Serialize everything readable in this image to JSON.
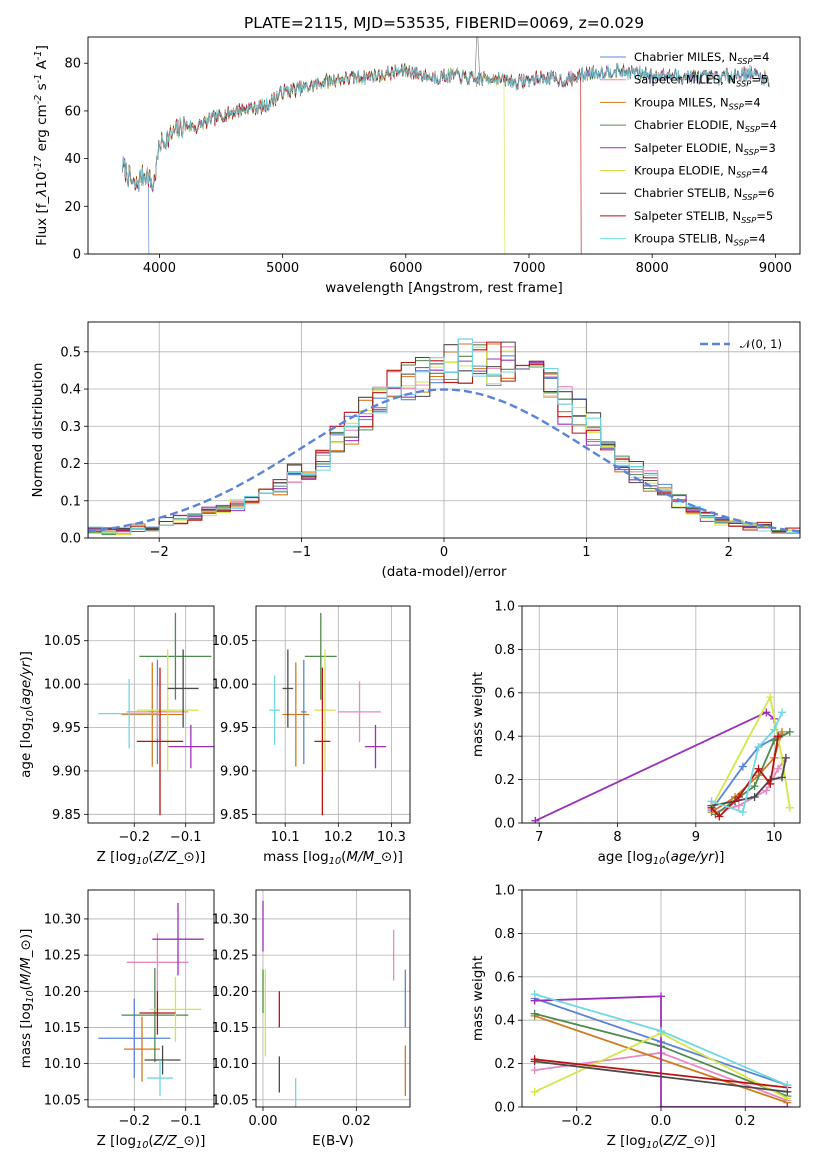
{
  "figure": {
    "title": "PLATE=2115, MJD=53535, FIBERID=0069, z=0.029",
    "colors": {
      "Chabrier MILES": "#5b84d8",
      "Salpeter MILES": "#e889c0",
      "Kroupa MILES": "#d07a22",
      "Chabrier ELODIE": "#4f8a4f",
      "Salpeter ELODIE": "#9b30b8",
      "Kroupa ELODIE": "#d4e64a",
      "Chabrier STELIB": "#4a4a4a",
      "Salpeter STELIB": "#b81414",
      "Kroupa STELIB": "#6fd8e0",
      "gaussian": "#5b84d8"
    }
  },
  "chart_data": [
    {
      "id": "spectrum",
      "type": "line",
      "xlabel": "wavelength [Angstrom, rest frame]",
      "ylabel": "Flux [f$_\\lambda$10$^{-17}$ erg cm$^{-2}$ s$^{-1}$ A$^{-1}$]",
      "xlim": [
        3420,
        9200
      ],
      "ylim": [
        0,
        91
      ],
      "xticks": [
        4000,
        5000,
        6000,
        7000,
        8000,
        9000
      ],
      "yticks": [
        0,
        20,
        40,
        60,
        80
      ],
      "grid": false,
      "legend": "top-right",
      "legend_entries": [
        {
          "name": "Chabrier MILES",
          "label": "Chabrier MILES, N",
          "sub": "SSP",
          "suffix": "=4"
        },
        {
          "name": "Salpeter MILES",
          "label": "Salpeter MILES, N",
          "sub": "SSP",
          "suffix": "=5"
        },
        {
          "name": "Kroupa MILES",
          "label": "Kroupa MILES, N",
          "sub": "SSP",
          "suffix": "=4"
        },
        {
          "name": "Chabrier ELODIE",
          "label": "Chabrier ELODIE, N",
          "sub": "SSP",
          "suffix": "=4"
        },
        {
          "name": "Salpeter ELODIE",
          "label": "Salpeter ELODIE, N",
          "sub": "SSP",
          "suffix": "=3"
        },
        {
          "name": "Kroupa ELODIE",
          "label": "Kroupa ELODIE, N",
          "sub": "SSP",
          "suffix": "=4"
        },
        {
          "name": "Chabrier STELIB",
          "label": "Chabrier STELIB, N",
          "sub": "SSP",
          "suffix": "=6"
        },
        {
          "name": "Salpeter STELIB",
          "label": "Salpeter STELIB, N",
          "sub": "SSP",
          "suffix": "=5"
        },
        {
          "name": "Kroupa STELIB",
          "label": "Kroupa STELIB, N",
          "sub": "SSP",
          "suffix": "=4"
        }
      ],
      "continuum": {
        "x": [
          3700,
          3800,
          3850,
          3900,
          3950,
          4000,
          4100,
          4200,
          4300,
          4400,
          4500,
          4700,
          4860,
          5000,
          5200,
          5400,
          5600,
          5800,
          6000,
          6200,
          6400,
          6563,
          6700,
          6900,
          7100,
          7300,
          7500,
          7700,
          8000,
          8500,
          8800,
          8950
        ],
        "y": [
          37,
          28,
          32,
          34,
          28,
          46,
          50,
          54,
          53,
          56,
          58,
          61,
          62,
          68,
          70,
          73,
          74,
          75,
          77,
          74,
          75,
          73,
          74,
          72,
          74,
          73,
          76,
          77,
          75,
          74,
          76,
          73
        ]
      },
      "dropouts": [
        {
          "name": "Chabrier MILES",
          "x": 3910
        },
        {
          "name": "Kroupa ELODIE",
          "x": 6800
        },
        {
          "name": "Salpeter STELIB",
          "x": 7420
        }
      ]
    },
    {
      "id": "residual-hist",
      "type": "line",
      "xlabel": "(data-model)/error",
      "ylabel": "Normed distribution",
      "xlim": [
        -2.5,
        2.5
      ],
      "ylim": [
        0,
        0.58
      ],
      "xticks": [
        -2,
        -1,
        0,
        1,
        2
      ],
      "yticks": [
        0.0,
        0.1,
        0.2,
        0.3,
        0.4,
        0.5
      ],
      "ytick_labels": [
        "0.0",
        "0.1",
        "0.2",
        "0.3",
        "0.4",
        "0.5"
      ],
      "grid": true,
      "legend": "top-right",
      "legend_entry": "𝒩(0, 1)",
      "bin_width": 0.1,
      "bin_start": -2.5,
      "base_hist": [
        0.02,
        0.02,
        0.02,
        0.03,
        0.03,
        0.04,
        0.05,
        0.06,
        0.07,
        0.08,
        0.09,
        0.1,
        0.12,
        0.14,
        0.17,
        0.19,
        0.22,
        0.26,
        0.3,
        0.34,
        0.37,
        0.4,
        0.42,
        0.44,
        0.45,
        0.46,
        0.47,
        0.48,
        0.47,
        0.46,
        0.44,
        0.42,
        0.4,
        0.36,
        0.33,
        0.29,
        0.25,
        0.21,
        0.18,
        0.15,
        0.12,
        0.1,
        0.08,
        0.06,
        0.05,
        0.04,
        0.03,
        0.03,
        0.02,
        0.02
      ]
    },
    {
      "id": "age-vs-Z",
      "type": "scatter",
      "xlabel": "Z [log$_{10}$($Z/Z_\\odot$)]",
      "ylabel": "age  [log$_{10}$($age/yr$)]",
      "xlim": [
        -0.29,
        -0.045
      ],
      "ylim": [
        9.84,
        10.09
      ],
      "xticks": [
        -0.2,
        -0.1
      ],
      "yticks": [
        9.85,
        9.9,
        9.95,
        10.0,
        10.05
      ],
      "ytick_labels": [
        "9.85",
        "9.90",
        "9.95",
        "10.00",
        "10.05"
      ],
      "grid": true,
      "points": [
        {
          "name": "Chabrier MILES",
          "x": -0.155,
          "y": 9.968,
          "xerr": 0.02,
          "yerr": 0.06
        },
        {
          "name": "Salpeter MILES",
          "x": -0.155,
          "y": 9.968,
          "xerr": 0.06,
          "yerr": 0.03
        },
        {
          "name": "Kroupa MILES",
          "x": -0.165,
          "y": 9.965,
          "xerr": 0.06,
          "yerr": 0.06
        },
        {
          "name": "Chabrier ELODIE",
          "x": -0.12,
          "y": 10.032,
          "xerr": 0.07,
          "yerr": 0.05
        },
        {
          "name": "Salpeter ELODIE",
          "x": -0.09,
          "y": 9.928,
          "xerr": 0.045,
          "yerr": 0.025
        },
        {
          "name": "Kroupa ELODIE",
          "x": -0.135,
          "y": 9.97,
          "xerr": 0.06,
          "yerr": 0.07
        },
        {
          "name": "Chabrier STELIB",
          "x": -0.105,
          "y": 9.995,
          "xerr": 0.03,
          "yerr": 0.045
        },
        {
          "name": "Salpeter STELIB",
          "x": -0.15,
          "y": 9.934,
          "xerr": 0.045,
          "yerr": 0.085
        },
        {
          "name": "Kroupa STELIB",
          "x": -0.21,
          "y": 9.966,
          "xerr": 0.06,
          "yerr": 0.04
        }
      ]
    },
    {
      "id": "age-vs-mass",
      "type": "scatter",
      "xlabel": "mass [log$_{10}$($M/M_\\odot$)]",
      "ylabel": "",
      "xlim": [
        10.045,
        10.335
      ],
      "ylim": [
        9.84,
        10.09
      ],
      "xticks": [
        10.1,
        10.2,
        10.3
      ],
      "xtick_labels": [
        "10.1",
        "10.2",
        "10.3"
      ],
      "yticks": [
        9.85,
        9.9,
        9.95,
        10.0,
        10.05
      ],
      "ytick_labels": [
        "9.85",
        "9.90",
        "9.95",
        "10.00",
        "10.05"
      ],
      "grid": true,
      "points": [
        {
          "name": "Chabrier MILES",
          "x": 10.135,
          "y": 9.968,
          "xerr": 0.005,
          "yerr": 0.06
        },
        {
          "name": "Salpeter MILES",
          "x": 10.24,
          "y": 9.968,
          "xerr": 0.04,
          "yerr": 0.035
        },
        {
          "name": "Kroupa MILES",
          "x": 10.12,
          "y": 9.965,
          "xerr": 0.025,
          "yerr": 0.06
        },
        {
          "name": "Chabrier ELODIE",
          "x": 10.167,
          "y": 10.032,
          "xerr": 0.03,
          "yerr": 0.05
        },
        {
          "name": "Salpeter ELODIE",
          "x": 10.27,
          "y": 9.928,
          "xerr": 0.02,
          "yerr": 0.025
        },
        {
          "name": "Kroupa ELODIE",
          "x": 10.175,
          "y": 9.97,
          "xerr": 0.02,
          "yerr": 0.07
        },
        {
          "name": "Chabrier STELIB",
          "x": 10.105,
          "y": 9.995,
          "xerr": 0.01,
          "yerr": 0.045
        },
        {
          "name": "Salpeter STELIB",
          "x": 10.17,
          "y": 9.934,
          "xerr": 0.015,
          "yerr": 0.085
        },
        {
          "name": "Kroupa STELIB",
          "x": 10.08,
          "y": 9.97,
          "xerr": 0.01,
          "yerr": 0.04
        }
      ]
    },
    {
      "id": "weight-vs-age",
      "type": "line",
      "xlabel": "age  [log$_{10}$($age/yr$)]",
      "ylabel": "mass weight",
      "xlim": [
        6.78,
        10.33
      ],
      "ylim": [
        0,
        1
      ],
      "xticks": [
        7,
        8,
        9,
        10
      ],
      "yticks": [
        0.0,
        0.2,
        0.4,
        0.6,
        0.8,
        1.0
      ],
      "ytick_labels": [
        "0.0",
        "0.2",
        "0.4",
        "0.6",
        "0.8",
        "1.0"
      ],
      "grid": true,
      "series": [
        {
          "name": "Chabrier MILES",
          "x": [
            9.2,
            9.6,
            9.8,
            10.1
          ],
          "y": [
            0.06,
            0.26,
            0.35,
            0.41
          ]
        },
        {
          "name": "Salpeter MILES",
          "x": [
            9.25,
            9.55,
            9.9,
            10.05,
            10.15
          ],
          "y": [
            0.05,
            0.08,
            0.15,
            0.25,
            0.3
          ]
        },
        {
          "name": "Kroupa MILES",
          "x": [
            9.2,
            9.5,
            9.8,
            10.0,
            10.1
          ],
          "y": [
            0.05,
            0.12,
            0.22,
            0.3,
            0.42
          ]
        },
        {
          "name": "Chabrier ELODIE",
          "x": [
            9.25,
            9.75,
            10.0,
            10.2
          ],
          "y": [
            0.04,
            0.17,
            0.38,
            0.42
          ]
        },
        {
          "name": "Salpeter ELODIE",
          "x": [
            6.95,
            9.9,
            10.0
          ],
          "y": [
            0.01,
            0.51,
            0.48
          ]
        },
        {
          "name": "Kroupa ELODIE",
          "x": [
            9.2,
            9.95,
            10.1,
            10.2
          ],
          "y": [
            0.07,
            0.58,
            0.3,
            0.07
          ]
        },
        {
          "name": "Chabrier STELIB",
          "x": [
            9.2,
            9.5,
            9.75,
            9.95,
            10.1,
            10.15
          ],
          "y": [
            0.08,
            0.1,
            0.12,
            0.2,
            0.21,
            0.3
          ]
        },
        {
          "name": "Salpeter STELIB",
          "x": [
            9.2,
            9.3,
            9.55,
            9.8,
            9.95,
            10.05
          ],
          "y": [
            0.07,
            0.03,
            0.12,
            0.25,
            0.18,
            0.4
          ]
        },
        {
          "name": "Kroupa STELIB",
          "x": [
            9.2,
            9.6,
            9.8,
            10.0,
            10.1
          ],
          "y": [
            0.1,
            0.05,
            0.35,
            0.43,
            0.51
          ]
        }
      ]
    },
    {
      "id": "mass-vs-Z",
      "type": "scatter",
      "xlabel": "Z [log$_{10}$($Z/Z_\\odot$)]",
      "ylabel": "mass [log$_{10}$($M/M_\\odot$)]",
      "xlim": [
        -0.29,
        -0.045
      ],
      "ylim": [
        10.04,
        10.34
      ],
      "xticks": [
        -0.2,
        -0.1
      ],
      "yticks": [
        10.05,
        10.1,
        10.15,
        10.2,
        10.25,
        10.3
      ],
      "ytick_labels": [
        "10.05",
        "10.10",
        "10.15",
        "10.20",
        "10.25",
        "10.30"
      ],
      "grid": true,
      "points": [
        {
          "name": "Chabrier MILES",
          "x": -0.2,
          "y": 10.135,
          "xerr": 0.07,
          "yerr": 0.055
        },
        {
          "name": "Salpeter MILES",
          "x": -0.155,
          "y": 10.24,
          "xerr": 0.06,
          "yerr": 0.04
        },
        {
          "name": "Kroupa MILES",
          "x": -0.185,
          "y": 10.12,
          "xerr": 0.035,
          "yerr": 0.045
        },
        {
          "name": "Chabrier ELODIE",
          "x": -0.16,
          "y": 10.167,
          "xerr": 0.065,
          "yerr": 0.065
        },
        {
          "name": "Salpeter ELODIE",
          "x": -0.115,
          "y": 10.272,
          "xerr": 0.05,
          "yerr": 0.05
        },
        {
          "name": "Kroupa ELODIE",
          "x": -0.12,
          "y": 10.175,
          "xerr": 0.05,
          "yerr": 0.045
        },
        {
          "name": "Chabrier STELIB",
          "x": -0.145,
          "y": 10.105,
          "xerr": 0.035,
          "yerr": 0.02
        },
        {
          "name": "Salpeter STELIB",
          "x": -0.155,
          "y": 10.17,
          "xerr": 0.035,
          "yerr": 0.03
        },
        {
          "name": "Kroupa STELIB",
          "x": -0.15,
          "y": 10.08,
          "xerr": 0.025,
          "yerr": 0.025
        }
      ]
    },
    {
      "id": "mass-vs-EBV",
      "type": "scatter",
      "xlabel": "E(B-V)",
      "ylabel": "",
      "xlim": [
        -0.0015,
        0.0315
      ],
      "ylim": [
        10.04,
        10.34
      ],
      "xticks": [
        0.0,
        0.02
      ],
      "xtick_labels": [
        "0.00",
        "0.02"
      ],
      "yticks": [
        10.05,
        10.1,
        10.15,
        10.2,
        10.25,
        10.3
      ],
      "ytick_labels": [
        "10.05",
        "10.10",
        "10.15",
        "10.20",
        "10.25",
        "10.30"
      ],
      "grid": true,
      "points": [
        {
          "name": "Chabrier MILES",
          "x": 0.0305,
          "y": 10.19,
          "xerr": 0,
          "yerr": 0.04
        },
        {
          "name": "Salpeter MILES",
          "x": 0.028,
          "y": 10.25,
          "xerr": 0,
          "yerr": 0.035
        },
        {
          "name": "Kroupa MILES",
          "x": 0.0305,
          "y": 10.09,
          "xerr": 0,
          "yerr": 0.035
        },
        {
          "name": "Chabrier ELODIE",
          "x": 0.0,
          "y": 10.2,
          "xerr": 0,
          "yerr": 0.03
        },
        {
          "name": "Salpeter ELODIE",
          "x": 0.0,
          "y": 10.29,
          "xerr": 0,
          "yerr": 0.035
        },
        {
          "name": "Kroupa ELODIE",
          "x": 0.0005,
          "y": 10.17,
          "xerr": 0,
          "yerr": 0.06
        },
        {
          "name": "Chabrier STELIB",
          "x": 0.0035,
          "y": 10.085,
          "xerr": 0,
          "yerr": 0.025
        },
        {
          "name": "Salpeter STELIB",
          "x": 0.0035,
          "y": 10.175,
          "xerr": 0,
          "yerr": 0.025
        },
        {
          "name": "Kroupa STELIB",
          "x": 0.007,
          "y": 10.06,
          "xerr": 0,
          "yerr": 0.02
        }
      ]
    },
    {
      "id": "weight-vs-Z",
      "type": "line",
      "xlabel": "Z [log$_{10}$($Z/Z_\\odot$)]",
      "ylabel": "mass weight",
      "xlim": [
        -0.33,
        0.33
      ],
      "ylim": [
        0,
        1
      ],
      "xticks": [
        -0.2,
        0.0,
        0.2
      ],
      "xtick_labels": [
        "−0.2",
        "0.0",
        "0.2"
      ],
      "yticks": [
        0.0,
        0.2,
        0.4,
        0.6,
        0.8,
        1.0
      ],
      "ytick_labels": [
        "0.0",
        "0.2",
        "0.4",
        "0.6",
        "0.8",
        "1.0"
      ],
      "grid": true,
      "series": [
        {
          "name": "Chabrier MILES",
          "x": [
            -0.3,
            0.0,
            0.3
          ],
          "y": [
            0.5,
            0.3,
            0.1
          ]
        },
        {
          "name": "Salpeter MILES",
          "x": [
            -0.3,
            0.0,
            0.3
          ],
          "y": [
            0.17,
            0.25,
            0.03
          ]
        },
        {
          "name": "Kroupa MILES",
          "x": [
            -0.3,
            0.3
          ],
          "y": [
            0.42,
            0.02
          ]
        },
        {
          "name": "Chabrier ELODIE",
          "x": [
            -0.3,
            0.0,
            0.3
          ],
          "y": [
            0.43,
            0.28,
            0.05
          ]
        },
        {
          "name": "Salpeter ELODIE",
          "x": [
            -0.3,
            0.0,
            0.0,
            0.3
          ],
          "y": [
            0.49,
            0.51,
            0.0,
            0.0
          ]
        },
        {
          "name": "Kroupa ELODIE",
          "x": [
            -0.3,
            0.0,
            0.3
          ],
          "y": [
            0.07,
            0.34,
            0.04
          ]
        },
        {
          "name": "Chabrier STELIB",
          "x": [
            -0.3,
            0.3
          ],
          "y": [
            0.21,
            0.07
          ]
        },
        {
          "name": "Salpeter STELIB",
          "x": [
            -0.3,
            0.3
          ],
          "y": [
            0.22,
            0.09
          ]
        },
        {
          "name": "Kroupa STELIB",
          "x": [
            -0.3,
            0.0,
            0.3
          ],
          "y": [
            0.52,
            0.35,
            0.1
          ]
        }
      ]
    }
  ]
}
